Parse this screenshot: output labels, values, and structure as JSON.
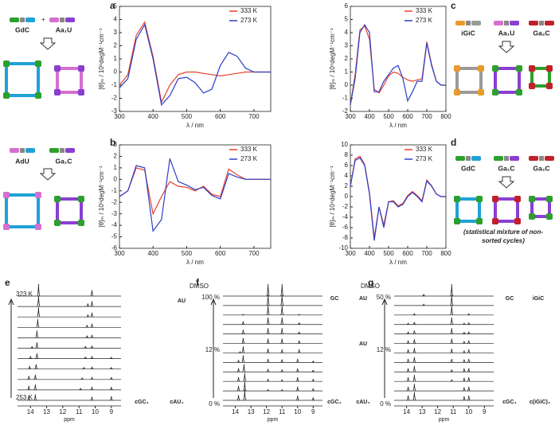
{
  "panels": {
    "letters": [
      "a",
      "b",
      "c",
      "d",
      "e",
      "f",
      "g"
    ]
  },
  "schemes": {
    "top_left": [
      "GdC",
      "Aa₁U"
    ],
    "bottom_left": [
      "AdU",
      "Ga₁C"
    ],
    "c": [
      "iGiC",
      "Aa₁U",
      "Ga₂C"
    ],
    "d": [
      "GdC",
      "Ga₁C",
      "Ga₂C"
    ],
    "d_note": [
      "(statistical mixture of non-",
      "sorted cycles)"
    ]
  },
  "chart_data": [
    {
      "type": "line",
      "xlabel": "λ / nm",
      "ylabel": "[θ]ₘ / 10⁵degM⁻¹cm⁻¹",
      "x": [
        300,
        325,
        350,
        375,
        400,
        425,
        450,
        475,
        500,
        525,
        550,
        575,
        600,
        625,
        650,
        675,
        700,
        725,
        750
      ],
      "series": [
        {
          "name": "333 K",
          "color": "#e8412c",
          "values": [
            -1.0,
            -0.2,
            2.8,
            3.8,
            1.2,
            -2.3,
            -1.0,
            -0.2,
            0,
            0,
            -0.1,
            -0.2,
            -0.3,
            -0.2,
            -0.1,
            0,
            0,
            0,
            0
          ]
        },
        {
          "name": "273 K",
          "color": "#2d3fc8",
          "values": [
            -1.2,
            -0.5,
            2.5,
            3.6,
            1.0,
            -2.5,
            -1.8,
            -0.5,
            -0.4,
            -0.8,
            -1.6,
            -1.3,
            0.5,
            1.5,
            1.2,
            0.3,
            0,
            0,
            0
          ]
        }
      ],
      "xlim": [
        300,
        750
      ],
      "ylim": [
        -3,
        5
      ],
      "xticks": [
        300,
        400,
        500,
        600,
        700
      ],
      "yticks": [
        -3,
        -2,
        -1,
        0,
        1,
        2,
        3,
        4,
        5
      ]
    },
    {
      "type": "line",
      "xlabel": "λ / nm",
      "ylabel": "[θ]ₘ / 10⁴degM⁻¹cm⁻¹",
      "x": [
        300,
        325,
        350,
        375,
        400,
        425,
        450,
        475,
        500,
        525,
        550,
        575,
        600,
        625,
        650,
        675,
        700,
        725,
        750,
        775,
        800
      ],
      "series": [
        {
          "name": "333 K",
          "color": "#e8412c",
          "values": [
            -1.5,
            0.8,
            4.2,
            4.5,
            3.5,
            -0.3,
            -0.6,
            0,
            0.7,
            1.0,
            0.9,
            0.6,
            0.4,
            0.3,
            0.4,
            0.5,
            3.3,
            1.6,
            0.3,
            0,
            0
          ]
        },
        {
          "name": "273 K",
          "color": "#2d3fc8",
          "values": [
            -1.5,
            0.5,
            4.0,
            4.6,
            4.0,
            -0.5,
            -0.5,
            0.3,
            0.8,
            1.3,
            1.5,
            0.5,
            -1.2,
            -0.5,
            0.3,
            0.3,
            3.2,
            1.5,
            0.3,
            0,
            0
          ]
        }
      ],
      "xlim": [
        300,
        800
      ],
      "ylim": [
        -2,
        6
      ],
      "xticks": [
        300,
        400,
        500,
        600,
        700,
        800
      ],
      "yticks": [
        -2,
        -1,
        0,
        1,
        2,
        3,
        4,
        5,
        6
      ]
    },
    {
      "type": "line",
      "xlabel": "λ / nm",
      "ylabel": "[θ]ₘ / 10⁵degM⁻¹cm⁻¹",
      "x": [
        300,
        325,
        350,
        375,
        400,
        425,
        450,
        475,
        500,
        525,
        550,
        575,
        600,
        625,
        650,
        675,
        700,
        725,
        750
      ],
      "series": [
        {
          "name": "333 K",
          "color": "#e8412c",
          "values": [
            -1.5,
            -1,
            1.0,
            0.8,
            -3,
            -1.5,
            -0.2,
            -0.6,
            -0.7,
            -1.0,
            -0.6,
            -1.3,
            -1.5,
            0.9,
            0.4,
            0,
            0,
            0,
            0
          ]
        },
        {
          "name": "273 K",
          "color": "#2d3fc8",
          "values": [
            -1.5,
            -1,
            1.2,
            1.0,
            -4.5,
            -3.5,
            1.8,
            -0.2,
            -0.5,
            -0.9,
            -0.7,
            -1.4,
            -1.7,
            0.5,
            0.2,
            0,
            0,
            0,
            0
          ]
        }
      ],
      "xlim": [
        300,
        750
      ],
      "ylim": [
        -6,
        3
      ],
      "xticks": [
        300,
        400,
        500,
        600,
        700
      ],
      "yticks": [
        -6,
        -5,
        -4,
        -3,
        -2,
        -1,
        0,
        1,
        2,
        3
      ]
    },
    {
      "type": "line",
      "xlabel": "λ / nm",
      "ylabel": "[θ]ₘ / 10⁴degM⁻¹cm⁻¹",
      "x": [
        300,
        325,
        350,
        375,
        400,
        425,
        450,
        475,
        500,
        525,
        550,
        575,
        600,
        625,
        650,
        675,
        700,
        725,
        750,
        775,
        800
      ],
      "series": [
        {
          "name": "333 K",
          "color": "#e8412c",
          "values": [
            2,
            7.3,
            7.8,
            6.2,
            0.8,
            -8,
            -2,
            -5.5,
            -1,
            -0.8,
            -1.8,
            -1.3,
            0.2,
            1,
            0.2,
            -0.8,
            3.2,
            2.1,
            0.5,
            0,
            0
          ]
        },
        {
          "name": "273 K",
          "color": "#2d3fc8",
          "values": [
            2,
            7,
            7.5,
            6,
            0.5,
            -8.5,
            -2,
            -6,
            -1,
            -1,
            -2,
            -1.5,
            0,
            0.8,
            0,
            -1,
            3.0,
            2.0,
            0.5,
            0,
            0
          ]
        }
      ],
      "xlim": [
        300,
        800
      ],
      "ylim": [
        -10,
        10
      ],
      "xticks": [
        300,
        400,
        500,
        600,
        700,
        800
      ],
      "yticks": [
        -10,
        -8,
        -6,
        -4,
        -2,
        0,
        2,
        4,
        6,
        8,
        10
      ]
    },
    {
      "type": "nmr-stack",
      "xlabel": "ppm",
      "xlim": [
        14.8,
        8.4
      ],
      "xticks": [
        14,
        13,
        12,
        11,
        10,
        9
      ],
      "side_labels": [
        "323 K",
        "253 K"
      ],
      "species_labels": [
        "AU",
        "cGC₄",
        "cAU₄"
      ],
      "series": [
        {
          "x": [
            13.5,
            10.2
          ],
          "values": [
            1.0,
            0.5
          ]
        },
        {
          "x": [
            13.5,
            10.2,
            10.45
          ],
          "values": [
            0.9,
            0.45,
            0.25
          ]
        },
        {
          "x": [
            13.5,
            10.2,
            10.45
          ],
          "values": [
            0.8,
            0.35,
            0.2
          ]
        },
        {
          "x": [
            13.55,
            10.2,
            10.5
          ],
          "values": [
            0.7,
            0.3,
            0.2
          ]
        },
        {
          "x": [
            13.6,
            10.2,
            10.5
          ],
          "values": [
            0.6,
            0.25,
            0.18
          ]
        },
        {
          "x": [
            13.6,
            13.9,
            10.2,
            10.6
          ],
          "values": [
            0.5,
            0.15,
            0.2,
            0.15
          ]
        },
        {
          "x": [
            13.6,
            14.0,
            10.2,
            10.6,
            9.0
          ],
          "values": [
            0.45,
            0.2,
            0.2,
            0.15,
            0.1
          ]
        },
        {
          "x": [
            13.65,
            14.05,
            10.2,
            10.7,
            9.0
          ],
          "values": [
            0.4,
            0.25,
            0.2,
            0.15,
            0.15
          ]
        },
        {
          "x": [
            13.7,
            14.1,
            10.2,
            10.8,
            9.0
          ],
          "values": [
            0.4,
            0.3,
            0.2,
            0.15,
            0.2
          ]
        },
        {
          "x": [
            13.7,
            14.1,
            10.2,
            10.9,
            9.0
          ],
          "values": [
            0.45,
            0.35,
            0.25,
            0.15,
            0.25
          ]
        },
        {
          "x": [
            13.7,
            14.1,
            10.2,
            9.0
          ],
          "values": [
            0.5,
            0.4,
            0.3,
            0.35
          ]
        }
      ]
    },
    {
      "type": "nmr-stack",
      "xlabel": "ppm",
      "xlim": [
        14.8,
        8.4
      ],
      "xticks": [
        14,
        13,
        12,
        11,
        10,
        9
      ],
      "side_labels": [
        "DMSO",
        "100 %",
        "12 %",
        "0 %"
      ],
      "species_labels": [
        "GC",
        "AU",
        "AU",
        "cGC₄",
        "cAU₄"
      ],
      "series": [
        {
          "x": [
            11.9,
            11.0
          ],
          "values": [
            1,
            1
          ]
        },
        {
          "x": [
            11.9,
            11.0
          ],
          "values": [
            0.9,
            0.9
          ]
        },
        {
          "x": [
            13.5,
            11.9,
            11.0,
            9.9
          ],
          "values": [
            0.05,
            0.8,
            0.8,
            0.05
          ]
        },
        {
          "x": [
            13.5,
            11.9,
            11.0,
            9.9
          ],
          "values": [
            0.25,
            0.6,
            0.6,
            0.15
          ]
        },
        {
          "x": [
            13.5,
            11.9,
            11.0,
            9.9
          ],
          "values": [
            0.35,
            0.5,
            0.5,
            0.2
          ]
        },
        {
          "x": [
            13.5,
            11.9,
            11.0,
            9.9
          ],
          "values": [
            0.45,
            0.4,
            0.4,
            0.25
          ]
        },
        {
          "x": [
            13.5,
            13.7,
            11.9,
            11.0,
            9.9
          ],
          "values": [
            0.55,
            0.1,
            0.35,
            0.3,
            0.3
          ]
        },
        {
          "x": [
            13.5,
            13.8,
            11.9,
            11.0,
            10.0,
            9.0
          ],
          "values": [
            0.6,
            0.2,
            0.3,
            0.25,
            0.3,
            0.1
          ]
        },
        {
          "x": [
            13.45,
            13.8,
            11.9,
            11.0,
            10.0,
            9.0
          ],
          "values": [
            0.65,
            0.3,
            0.25,
            0.2,
            0.3,
            0.15
          ]
        },
        {
          "x": [
            13.4,
            13.8,
            11.9,
            11.0,
            10.0,
            9.0
          ],
          "values": [
            0.7,
            0.35,
            0.2,
            0.15,
            0.35,
            0.2
          ]
        },
        {
          "x": [
            13.4,
            13.8,
            11.9,
            11.0,
            10.0,
            9.0
          ],
          "values": [
            0.8,
            0.4,
            0.1,
            0.1,
            0.35,
            0.2
          ]
        },
        {
          "x": [
            13.4,
            13.8,
            10.0,
            9.0
          ],
          "values": [
            0.9,
            0.45,
            0.4,
            0.25
          ]
        }
      ]
    },
    {
      "type": "nmr-stack",
      "xlabel": "ppm",
      "xlim": [
        14.8,
        8.4
      ],
      "xticks": [
        14,
        13,
        12,
        11,
        10,
        9
      ],
      "side_labels": [
        "DMSO",
        "50 %",
        "12 %",
        "0 %"
      ],
      "species_labels": [
        "GC",
        "iGiC",
        "cGC₄",
        "c(iGiC)₄"
      ],
      "series": [
        {
          "x": [
            12.9,
            11.1
          ],
          "values": [
            0.15,
            1
          ]
        },
        {
          "x": [
            12.9,
            11.1
          ],
          "values": [
            0.1,
            0.9
          ]
        },
        {
          "x": [
            13.5,
            11.1,
            10.0
          ],
          "values": [
            0.1,
            0.8,
            0.1
          ]
        },
        {
          "x": [
            13.5,
            13.9,
            11.1,
            10.3,
            10.0
          ],
          "values": [
            0.2,
            0.1,
            0.6,
            0.1,
            0.15
          ]
        },
        {
          "x": [
            13.5,
            13.9,
            11.1,
            10.3,
            10.0
          ],
          "values": [
            0.3,
            0.2,
            0.5,
            0.15,
            0.2
          ]
        },
        {
          "x": [
            13.5,
            13.9,
            11.1,
            10.3,
            10.0
          ],
          "values": [
            0.35,
            0.25,
            0.4,
            0.2,
            0.25
          ]
        },
        {
          "x": [
            13.5,
            13.9,
            11.1,
            10.3,
            10.0
          ],
          "values": [
            0.4,
            0.3,
            0.35,
            0.2,
            0.3
          ]
        },
        {
          "x": [
            13.5,
            13.9,
            11.1,
            10.3,
            10.0
          ],
          "values": [
            0.45,
            0.3,
            0.3,
            0.25,
            0.3
          ]
        },
        {
          "x": [
            13.5,
            13.9,
            11.1,
            10.3,
            10.0
          ],
          "values": [
            0.5,
            0.3,
            0.2,
            0.3,
            0.3
          ]
        },
        {
          "x": [
            13.5,
            13.9,
            11.1,
            10.3,
            10.0
          ],
          "values": [
            0.55,
            0.35,
            0.15,
            0.3,
            0.35
          ]
        },
        {
          "x": [
            13.5,
            13.9,
            10.3,
            10.0
          ],
          "values": [
            0.6,
            0.35,
            0.3,
            0.35
          ]
        },
        {
          "x": [
            13.5,
            13.9,
            10.3,
            10.0
          ],
          "values": [
            0.7,
            0.4,
            0.35,
            0.4
          ]
        }
      ]
    }
  ]
}
